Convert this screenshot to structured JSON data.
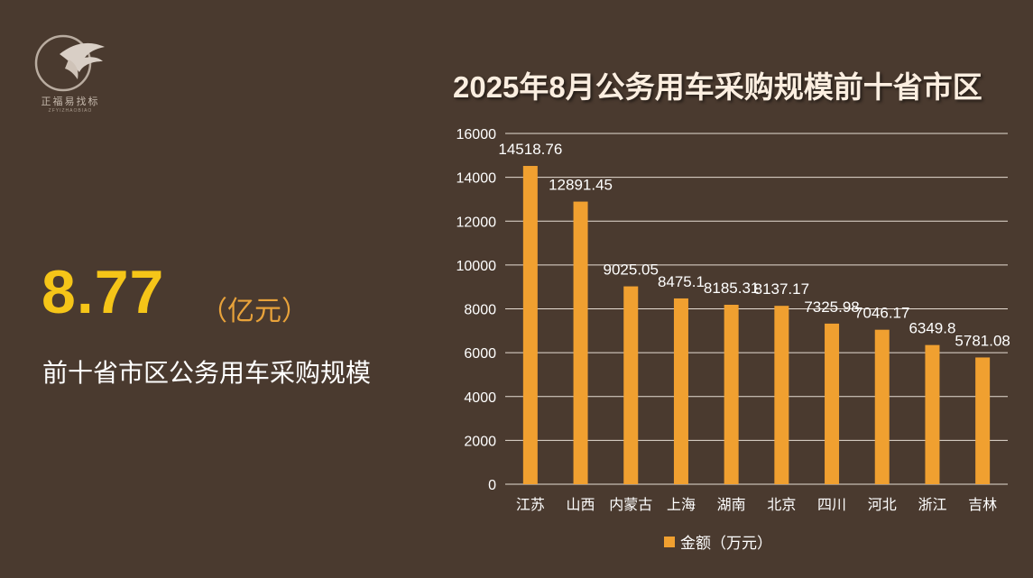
{
  "logo": {
    "name": "正福易找标",
    "sub": "ZFYIZHAOBIAO"
  },
  "summary": {
    "value": "8.77",
    "unit": "（亿元）",
    "caption": "前十省市区公务用车采购规模"
  },
  "colors": {
    "background": "#4a3a2f",
    "bar": "#f0a030",
    "highlight": "#f5c518"
  },
  "chart_data": {
    "type": "bar",
    "title": "2025年8月公务用车采购规模前十省市区",
    "categories": [
      "江苏",
      "山西",
      "内蒙古",
      "上海",
      "湖南",
      "北京",
      "四川",
      "河北",
      "浙江",
      "吉林"
    ],
    "series": [
      {
        "name": "金额（万元）",
        "values": [
          14518.76,
          12891.45,
          9025.05,
          8475.1,
          8185.31,
          8137.17,
          7325.98,
          7046.17,
          6349.8,
          5781.08
        ]
      }
    ],
    "data_labels": [
      "14518.76",
      "12891.45",
      "9025.05",
      "8475.1",
      "8185.31",
      "8137.17",
      "7325.98",
      "7046.17",
      "6349.8",
      "5781.08"
    ],
    "ylim": [
      0,
      16000
    ],
    "yticks": [
      0,
      2000,
      4000,
      6000,
      8000,
      10000,
      12000,
      14000,
      16000
    ],
    "grid": true,
    "legend_position": "bottom"
  }
}
